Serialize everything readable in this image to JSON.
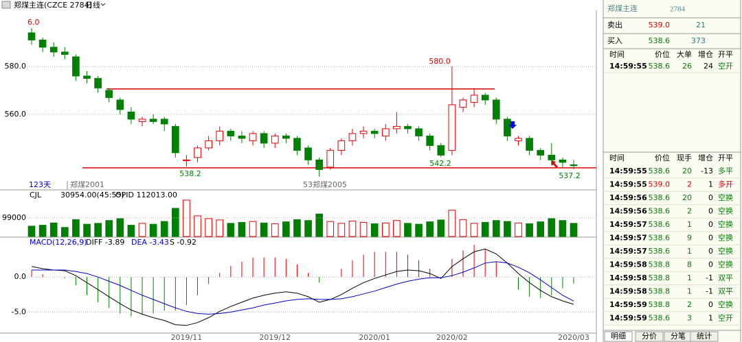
{
  "chart_data": {
    "type": "candlestick",
    "title": "郑煤主连(CZCE 2784)",
    "period": "日线",
    "up_color": "#e00000",
    "down_color": "#008000",
    "categories": [
      null,
      null,
      null,
      null,
      null,
      null,
      null,
      null,
      null,
      null,
      null,
      null,
      null,
      null,
      "2019/11",
      null,
      null,
      null,
      null,
      null,
      null,
      null,
      "2019/12",
      null,
      null,
      null,
      null,
      null,
      null,
      null,
      null,
      "2020/01",
      null,
      null,
      null,
      null,
      null,
      null,
      "2020/02",
      null,
      null,
      null,
      null,
      null,
      null,
      null,
      null,
      null,
      null,
      "2020/03"
    ],
    "price": {
      "ylim": [
        529.1,
        603.4
      ],
      "yticks": [
        {
          "value": 580,
          "label": "580.0"
        },
        {
          "value": 560,
          "label": "560.0"
        }
      ],
      "grid": true,
      "open": [
        594,
        591,
        588,
        586,
        584,
        576,
        575,
        570,
        566,
        561,
        557,
        558,
        558,
        555,
        541,
        542,
        546,
        549,
        553,
        551,
        549,
        552,
        548,
        551,
        550,
        546,
        541,
        538,
        545,
        549,
        552,
        553,
        551,
        554,
        555,
        554,
        551,
        547,
        545,
        563,
        565,
        568,
        566,
        558,
        549,
        550,
        545,
        543,
        541,
        539
      ],
      "high": [
        596,
        592,
        590,
        588,
        585,
        578,
        576,
        571,
        567,
        563,
        559,
        560,
        559,
        556,
        543,
        547,
        551,
        555,
        554,
        553,
        553,
        553,
        552,
        552,
        551,
        547,
        542,
        546,
        550,
        554,
        555,
        554,
        556,
        561,
        556,
        555,
        552,
        548,
        580,
        567,
        571,
        569,
        567,
        559,
        551,
        551,
        546,
        548,
        542,
        541
      ],
      "low": [
        589,
        586,
        584,
        583,
        574,
        573,
        569,
        565,
        560,
        556,
        555,
        556,
        553,
        542,
        538.2,
        540,
        545,
        547,
        549,
        548,
        547,
        546,
        546,
        548,
        543,
        539,
        534,
        537,
        543,
        547,
        550,
        550,
        549,
        552,
        552,
        549,
        545,
        542.2,
        543,
        561,
        563,
        564,
        556,
        549,
        547,
        543,
        541,
        539,
        538,
        537.2
      ],
      "close": [
        591,
        588,
        586,
        585,
        576,
        575,
        571,
        567,
        562,
        558,
        558,
        557,
        556,
        544,
        541,
        546,
        549,
        553,
        551,
        550,
        552,
        548,
        551,
        550,
        545,
        541,
        537,
        545,
        549,
        552,
        553,
        552,
        554,
        555,
        554,
        551,
        547,
        543,
        564,
        566,
        568,
        566,
        558,
        551,
        550,
        545,
        543,
        541,
        540,
        538.6
      ],
      "hlines": [
        570.6,
        537.7
      ],
      "annotations": [
        {
          "text": "6.0",
          "color": "#e00000"
        },
        {
          "text": "580.0",
          "color": "#e00000"
        },
        {
          "text": "538.2",
          "color": "#008000"
        },
        {
          "text": "542.2",
          "color": "#008000"
        },
        {
          "text": "537.2",
          "color": "#008000"
        }
      ],
      "labels": [
        "123天",
        "郑煤2001",
        "53郑煤2005"
      ]
    },
    "volume": {
      "name": "CJL",
      "info": [
        "30954.00(45:55)",
        "OPID 112013.00"
      ],
      "ylim": [
        0,
        245000
      ],
      "yticks": [
        99000
      ],
      "values": [
        55000,
        60000,
        72000,
        48000,
        90000,
        65000,
        70000,
        85000,
        95000,
        60000,
        70000,
        65000,
        80000,
        150000,
        194000,
        110000,
        95000,
        88000,
        70000,
        75000,
        80000,
        72000,
        68000,
        78000,
        90000,
        85000,
        120000,
        80000,
        70000,
        82000,
        75000,
        68000,
        72000,
        85000,
        70000,
        65000,
        78000,
        88000,
        140000,
        90000,
        70000,
        75000,
        85000,
        80000,
        72000,
        68000,
        78000,
        95000,
        85000,
        70000
      ]
    },
    "macd": {
      "name": "MACD(12,26,9)",
      "info": [
        {
          "text": "DIFF -3.89",
          "color": "#000000"
        },
        {
          "text": "DEA -3.43",
          "color": "#0000cc"
        },
        {
          "text": "S -0.92",
          "color": "#000000"
        }
      ],
      "ylim": [
        -7.9,
        5.5
      ],
      "yticks": [
        {
          "value": 0,
          "label": "0.0"
        },
        {
          "value": -5,
          "label": "-5.0"
        }
      ],
      "diff": [
        1.5,
        1.2,
        1.0,
        0.9,
        0.2,
        -0.8,
        -1.8,
        -2.8,
        -3.8,
        -4.7,
        -5.3,
        -5.8,
        -6.2,
        -6.8,
        -6.9,
        -6.5,
        -5.8,
        -4.9,
        -4.2,
        -3.6,
        -3.0,
        -2.6,
        -2.3,
        -2.1,
        -2.3,
        -2.8,
        -3.6,
        -3.2,
        -2.5,
        -1.6,
        -0.8,
        -0.2,
        0.3,
        0.8,
        1.0,
        0.9,
        0.5,
        -0.2,
        1.5,
        2.6,
        3.6,
        4.0,
        3.3,
        2.0,
        0.5,
        -0.8,
        -1.9,
        -2.8,
        -3.4,
        -3.89
      ],
      "dea": [
        1.0,
        1.0,
        1.0,
        1.0,
        0.8,
        0.5,
        0.0,
        -0.6,
        -1.2,
        -1.9,
        -2.6,
        -3.2,
        -3.8,
        -4.4,
        -4.9,
        -5.2,
        -5.3,
        -5.2,
        -5.0,
        -4.7,
        -4.4,
        -4.0,
        -3.7,
        -3.4,
        -3.2,
        -3.1,
        -3.2,
        -3.2,
        -3.1,
        -2.8,
        -2.4,
        -2.0,
        -1.5,
        -1.0,
        -0.6,
        -0.3,
        -0.1,
        -0.1,
        0.2,
        0.7,
        1.3,
        2.0,
        2.2,
        2.0,
        1.4,
        0.6,
        -0.4,
        -1.5,
        -2.6,
        -3.43
      ],
      "s": [
        1.0,
        0.4,
        0,
        -0.2,
        -1.2,
        -2.6,
        -3.6,
        -4.4,
        -5.2,
        -5.6,
        -5.4,
        -5.2,
        -4.8,
        -4.8,
        -4.0,
        -2.6,
        -1.0,
        0.6,
        1.6,
        2.2,
        2.8,
        2.8,
        2.8,
        2.6,
        1.8,
        0.6,
        -0.8,
        0,
        1.2,
        2.4,
        3.2,
        3.6,
        3.6,
        3.6,
        3.2,
        2.4,
        1.2,
        -0.2,
        2.6,
        3.8,
        4.6,
        4.0,
        2.2,
        0,
        -1.8,
        -2.8,
        -3.0,
        -2.6,
        -1.6,
        -0.92
      ]
    }
  },
  "panel": {
    "title": "郑煤主连",
    "code": "2784",
    "sell": {
      "label": "卖出",
      "price": "539.0",
      "qty": "21"
    },
    "buy": {
      "label": "买入",
      "price": "538.6",
      "qty": "373"
    },
    "big": {
      "header": [
        "时间",
        "价位",
        "大单",
        "增仓",
        "开平"
      ],
      "rows": [
        {
          "cells": [
            "14:59:55",
            "538.6",
            "26",
            "24",
            "空开"
          ],
          "color": "#008000"
        }
      ]
    },
    "ticks": {
      "header": [
        "时间",
        "价位",
        "现手",
        "增仓",
        "开平"
      ],
      "rows": [
        {
          "cells": [
            "14:59:55",
            "538.6",
            "20",
            "-13",
            "多平"
          ],
          "color": "#008000"
        },
        {
          "cells": [
            "14:59:55",
            "539.0",
            "2",
            "1",
            "多开"
          ],
          "color": "#e00000"
        },
        {
          "cells": [
            "14:59:56",
            "538.6",
            "20",
            "0",
            "空换"
          ],
          "color": "#008000"
        },
        {
          "cells": [
            "14:59:56",
            "538.6",
            "2",
            "0",
            "空换"
          ],
          "color": "#008000"
        },
        {
          "cells": [
            "14:59:57",
            "538.6",
            "1",
            "0",
            "空换"
          ],
          "color": "#008000"
        },
        {
          "cells": [
            "14:59:57",
            "538.6",
            "9",
            "0",
            "空换"
          ],
          "color": "#008000"
        },
        {
          "cells": [
            "14:59:57",
            "538.6",
            "1",
            "0",
            "空换"
          ],
          "color": "#008000"
        },
        {
          "cells": [
            "14:59:58",
            "538.8",
            "8",
            "0",
            "空换"
          ],
          "color": "#008000"
        },
        {
          "cells": [
            "14:59:58",
            "538.8",
            "1",
            "-1",
            "双平"
          ],
          "color": "#008000"
        },
        {
          "cells": [
            "14:59:58",
            "538.8",
            "1",
            "-1",
            "双平"
          ],
          "color": "#008000"
        },
        {
          "cells": [
            "14:59:59",
            "538.8",
            "2",
            "0",
            "空换"
          ],
          "color": "#008000"
        },
        {
          "cells": [
            "14:59:59",
            "538.6",
            "3",
            "1",
            "空开"
          ],
          "color": "#008000"
        }
      ]
    },
    "tabs": [
      "明细",
      "分价",
      "分笔",
      "统计"
    ]
  }
}
